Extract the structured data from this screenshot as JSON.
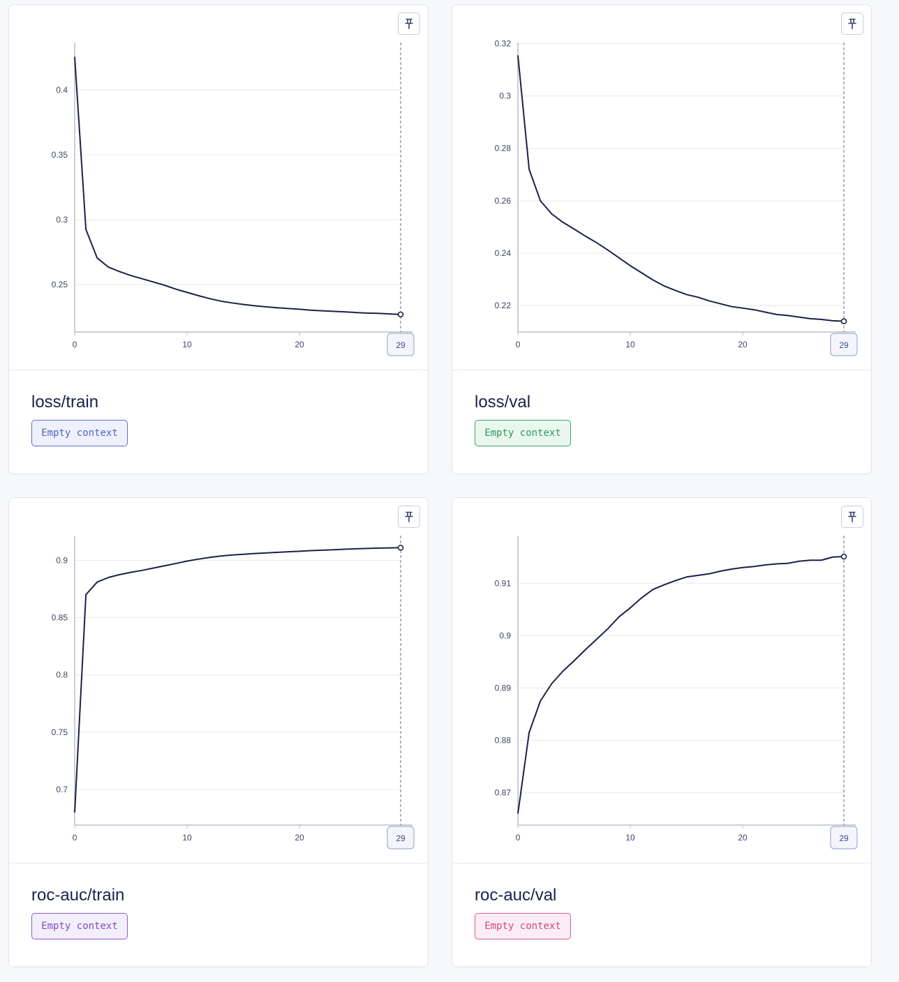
{
  "cards": [
    {
      "title": "loss/train",
      "context_label": "Empty context",
      "badge_colors": {
        "bg": "#eef1fb",
        "border": "#5c70c8",
        "text": "#4f63c4"
      },
      "pin_icon": "pin-icon",
      "cursor_step": "29",
      "chart_data": {
        "type": "line",
        "title": "",
        "xlabel": "",
        "ylabel": "",
        "x_ticks": [
          0,
          10,
          20
        ],
        "y_ticks": [
          0.25,
          0.3,
          0.35,
          0.4
        ],
        "y_tick_labels": [
          "0.25",
          "0.3",
          "0.35",
          "0.4"
        ],
        "xlim": [
          0,
          29
        ],
        "ylim": [
          0.2135,
          0.4365
        ],
        "grid": true,
        "color": "#1b2048",
        "x": [
          0,
          1,
          2,
          3,
          4,
          5,
          6,
          7,
          8,
          9,
          10,
          11,
          12,
          13,
          14,
          15,
          16,
          17,
          18,
          19,
          20,
          21,
          22,
          23,
          24,
          25,
          26,
          27,
          28,
          29
        ],
        "values": [
          0.4255,
          0.2925,
          0.2705,
          0.2635,
          0.26,
          0.257,
          0.2545,
          0.252,
          0.2495,
          0.2465,
          0.244,
          0.2415,
          0.2392,
          0.2373,
          0.2359,
          0.2347,
          0.2337,
          0.2329,
          0.2322,
          0.2316,
          0.231,
          0.2303,
          0.2298,
          0.2294,
          0.229,
          0.2285,
          0.2281,
          0.2279,
          0.2274,
          0.227
        ]
      }
    },
    {
      "title": "loss/val",
      "context_label": "Empty context",
      "badge_colors": {
        "bg": "#e9f7ee",
        "border": "#3ba566",
        "text": "#2e9a57"
      },
      "pin_icon": "pin-icon",
      "cursor_step": "29",
      "chart_data": {
        "type": "line",
        "title": "",
        "xlabel": "",
        "ylabel": "",
        "x_ticks": [
          0,
          10,
          20
        ],
        "y_ticks": [
          0.22,
          0.24,
          0.26,
          0.28,
          0.3,
          0.32
        ],
        "y_tick_labels": [
          "0.22",
          "0.24",
          "0.26",
          "0.28",
          "0.3",
          "0.32"
        ],
        "xlim": [
          0,
          29
        ],
        "ylim": [
          0.2099,
          0.3204
        ],
        "grid": true,
        "color": "#1b2048",
        "x": [
          0,
          1,
          2,
          3,
          4,
          5,
          6,
          7,
          8,
          9,
          10,
          11,
          12,
          13,
          14,
          15,
          16,
          17,
          18,
          19,
          20,
          21,
          22,
          23,
          24,
          25,
          26,
          27,
          28,
          29
        ],
        "values": [
          0.3155,
          0.272,
          0.26,
          0.255,
          0.2518,
          0.2492,
          0.2465,
          0.244,
          0.2412,
          0.2382,
          0.2352,
          0.2325,
          0.2298,
          0.2275,
          0.2258,
          0.2242,
          0.2232,
          0.2218,
          0.2207,
          0.2196,
          0.219,
          0.2184,
          0.2175,
          0.2166,
          0.2162,
          0.2156,
          0.215,
          0.2147,
          0.2142,
          0.214
        ]
      }
    },
    {
      "title": "roc-auc/train",
      "context_label": "Empty context",
      "badge_colors": {
        "bg": "#f3eefb",
        "border": "#8a5cc8",
        "text": "#7e4fc0"
      },
      "pin_icon": "pin-icon",
      "cursor_step": "29",
      "chart_data": {
        "type": "line",
        "title": "",
        "xlabel": "",
        "ylabel": "",
        "x_ticks": [
          0,
          10,
          20
        ],
        "y_ticks": [
          0.7,
          0.75,
          0.8,
          0.85,
          0.9
        ],
        "y_tick_labels": [
          "0.7",
          "0.75",
          "0.8",
          "0.85",
          "0.9"
        ],
        "xlim": [
          0,
          29
        ],
        "ylim": [
          0.669,
          0.9215
        ],
        "grid": true,
        "color": "#1b2048",
        "x": [
          0,
          1,
          2,
          3,
          4,
          5,
          6,
          7,
          8,
          9,
          10,
          11,
          12,
          13,
          14,
          15,
          16,
          17,
          18,
          19,
          20,
          21,
          22,
          23,
          24,
          25,
          26,
          27,
          28,
          29
        ],
        "values": [
          0.68,
          0.87,
          0.881,
          0.885,
          0.8875,
          0.8895,
          0.8912,
          0.8932,
          0.8952,
          0.8972,
          0.8993,
          0.901,
          0.9025,
          0.9037,
          0.9046,
          0.9052,
          0.9059,
          0.9064,
          0.9069,
          0.9074,
          0.9079,
          0.9084,
          0.9088,
          0.9092,
          0.9096,
          0.91,
          0.9103,
          0.9106,
          0.9108,
          0.911
        ]
      }
    },
    {
      "title": "roc-auc/val",
      "context_label": "Empty context",
      "badge_colors": {
        "bg": "#fcedf4",
        "border": "#d65b95",
        "text": "#cc4a86"
      },
      "pin_icon": "pin-icon",
      "cursor_step": "29",
      "chart_data": {
        "type": "line",
        "title": "",
        "xlabel": "",
        "ylabel": "",
        "x_ticks": [
          0,
          10,
          20
        ],
        "y_ticks": [
          0.87,
          0.88,
          0.89,
          0.9,
          0.91
        ],
        "y_tick_labels": [
          "0.87",
          "0.88",
          "0.89",
          "0.9",
          "0.91"
        ],
        "xlim": [
          0,
          29
        ],
        "ylim": [
          0.8638,
          0.9191
        ],
        "grid": true,
        "color": "#1b2048",
        "x": [
          0,
          1,
          2,
          3,
          4,
          5,
          6,
          7,
          8,
          9,
          10,
          11,
          12,
          13,
          14,
          15,
          16,
          17,
          18,
          19,
          20,
          21,
          22,
          23,
          24,
          25,
          26,
          27,
          28,
          29
        ],
        "values": [
          0.866,
          0.8815,
          0.8875,
          0.8908,
          0.8932,
          0.8952,
          0.8973,
          0.8993,
          0.9013,
          0.9036,
          0.9053,
          0.9072,
          0.9088,
          0.9097,
          0.9105,
          0.9112,
          0.9115,
          0.9118,
          0.9123,
          0.9127,
          0.913,
          0.9132,
          0.9135,
          0.9137,
          0.9138,
          0.9142,
          0.9144,
          0.9144,
          0.915,
          0.9151
        ]
      }
    }
  ]
}
